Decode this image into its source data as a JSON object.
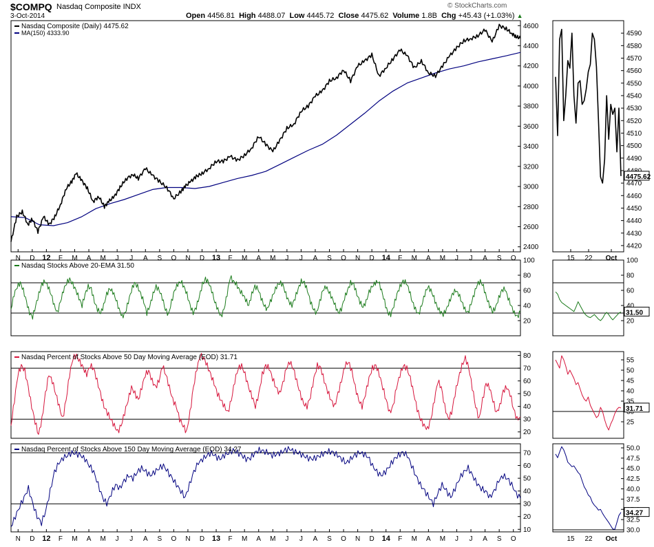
{
  "header": {
    "symbol": "$COMPQ",
    "index_name": "Nasdaq Composite INDX",
    "date": "3-Oct-2014",
    "open_label": "Open",
    "open": "4456.81",
    "high_label": "High",
    "high": "4488.07",
    "low_label": "Low",
    "low": "4445.72",
    "close_label": "Close",
    "close": "4475.62",
    "volume_label": "Volume",
    "volume": "1.8B",
    "chg_label": "Chg",
    "chg": "+45.43 (+1.03%)",
    "watermark": "© StockCharts.com"
  },
  "colors": {
    "price": "#000000",
    "ma": "#00007f",
    "ema20": "#1a7a1a",
    "pct50": "#d6133a",
    "pct150": "#00007f",
    "grid": "#000000"
  },
  "chart_data": [
    {
      "type": "line",
      "title": "Nasdaq Composite (Daily) 4475.62",
      "legend": [
        "Nasdaq Composite (Daily) 4475.62",
        "MA(150) 4333.90"
      ],
      "ylim": [
        2350,
        4650
      ],
      "yticks": [
        2400,
        2600,
        2800,
        3000,
        3200,
        3400,
        3600,
        3800,
        4000,
        4200,
        4400,
        4600
      ],
      "xticks": [
        "N",
        "D",
        "12",
        "F",
        "M",
        "A",
        "M",
        "J",
        "J",
        "A",
        "S",
        "O",
        "N",
        "D",
        "13",
        "F",
        "M",
        "A",
        "M",
        "J",
        "J",
        "A",
        "S",
        "O",
        "N",
        "D",
        "14",
        "F",
        "M",
        "A",
        "M",
        "J",
        "J",
        "A",
        "S",
        "O"
      ],
      "xlim_months": [
        0,
        36
      ],
      "series": [
        {
          "name": "Nasdaq Composite",
          "t": [
            0,
            0.4,
            0.8,
            1.2,
            1.5,
            1.9,
            2.3,
            2.7,
            3.1,
            3.5,
            3.9,
            4.3,
            4.6,
            5.0,
            5.4,
            5.8,
            6.2,
            6.6,
            6.9,
            7.3,
            7.7,
            8.1,
            8.6,
            9.0,
            9.5,
            10.0,
            10.5,
            11.0,
            11.5,
            12.0,
            12.3,
            12.7,
            13.1,
            13.5,
            14.0,
            14.5,
            15.0,
            15.5,
            16.0,
            16.5,
            17.0,
            17.5,
            18.0,
            18.5,
            19.0,
            19.5,
            20.0,
            20.5,
            21.0,
            21.5,
            22.0,
            22.5,
            23.0,
            23.5,
            24.0,
            24.5,
            25.0,
            25.5,
            26.0,
            26.5,
            27.0,
            27.5,
            28.0,
            28.5,
            29.0,
            29.5,
            30.0,
            30.5,
            31.0,
            31.5,
            32.0,
            32.5,
            33.0,
            33.5,
            34.0,
            34.5,
            35.0,
            35.4,
            35.7,
            36.0
          ],
          "values": [
            2450,
            2700,
            2750,
            2620,
            2680,
            2550,
            2700,
            2620,
            2700,
            2820,
            2980,
            3050,
            3130,
            3060,
            2980,
            2850,
            2900,
            2800,
            2850,
            2900,
            2990,
            3070,
            3120,
            3080,
            3180,
            3110,
            3050,
            2990,
            2880,
            2950,
            3000,
            3050,
            3100,
            3130,
            3180,
            3250,
            3250,
            3300,
            3260,
            3310,
            3380,
            3500,
            3420,
            3350,
            3460,
            3580,
            3620,
            3750,
            3800,
            3900,
            3950,
            4050,
            4080,
            4160,
            4050,
            4200,
            4250,
            4310,
            4100,
            4180,
            4270,
            4360,
            4300,
            4180,
            4250,
            4130,
            4100,
            4200,
            4300,
            4380,
            4450,
            4470,
            4500,
            4560,
            4440,
            4600,
            4570,
            4520,
            4490,
            4475.62
          ]
        },
        {
          "name": "MA(150)",
          "t": [
            0,
            1,
            2,
            3,
            4,
            5,
            6,
            7,
            8,
            9,
            10,
            11,
            12,
            13,
            14,
            15,
            16,
            17,
            18,
            19,
            20,
            21,
            22,
            23,
            24,
            25,
            26,
            27,
            28,
            29,
            30,
            31,
            32,
            33,
            34,
            35,
            36
          ],
          "values": [
            2700,
            2690,
            2620,
            2610,
            2640,
            2700,
            2780,
            2830,
            2870,
            2920,
            2970,
            2990,
            2990,
            2980,
            3000,
            3040,
            3080,
            3110,
            3150,
            3220,
            3290,
            3360,
            3420,
            3510,
            3620,
            3730,
            3850,
            3950,
            4030,
            4080,
            4130,
            4170,
            4200,
            4240,
            4270,
            4300,
            4333.9
          ]
        }
      ],
      "zoom": {
        "ylim": [
          4415,
          4600
        ],
        "yticks": [
          4420,
          4430,
          4440,
          4450,
          4460,
          4470,
          4480,
          4490,
          4500,
          4510,
          4520,
          4530,
          4540,
          4550,
          4560,
          4570,
          4580,
          4590
        ],
        "xticks": [
          "15",
          "22",
          "Oct"
        ],
        "values": [
          4555,
          4508,
          4585,
          4593,
          4520,
          4540,
          4568,
          4562,
          4590,
          4540,
          4518,
          4550,
          4552,
          4533,
          4536,
          4545,
          4559,
          4565,
          4590,
          4585,
          4563,
          4521,
          4475,
          4470,
          4489,
          4540,
          4505,
          4533,
          4525,
          4530,
          4495,
          4530,
          4475.62
        ],
        "last_label": "4475.62"
      }
    },
    {
      "type": "line",
      "title": "Nasdaq Stocks Above 20-EMA 31.50",
      "ylim": [
        0,
        100
      ],
      "yticks": [
        20,
        40,
        60,
        80,
        100
      ],
      "hlines": [
        30,
        70
      ],
      "series": [
        {
          "name": "Nasdaq Stocks Above 20-EMA",
          "values": [
            35,
            55,
            65,
            70,
            60,
            45,
            30,
            25,
            40,
            55,
            68,
            72,
            65,
            55,
            40,
            30,
            45,
            60,
            70,
            75,
            68,
            60,
            50,
            40,
            55,
            65,
            62,
            45,
            35,
            30,
            40,
            55,
            62,
            58,
            48,
            35,
            25,
            30,
            45,
            60,
            70,
            65,
            55,
            45,
            30,
            40,
            55,
            65,
            60,
            50,
            35,
            28,
            45,
            60,
            68,
            72,
            65,
            55,
            40,
            30,
            38,
            52,
            68,
            75,
            70,
            60,
            45,
            35,
            25,
            35,
            55,
            78,
            72,
            68,
            60,
            55,
            48,
            40,
            55,
            65,
            62,
            50,
            40,
            35,
            45,
            55,
            65,
            70,
            68,
            55,
            45,
            40,
            50,
            62,
            72,
            70,
            60,
            45,
            35,
            30,
            45,
            60,
            65,
            58,
            50,
            40,
            30,
            35,
            50,
            60,
            70,
            68,
            55,
            45,
            38,
            45,
            58,
            65,
            70,
            72,
            60,
            45,
            30,
            28,
            40,
            55,
            65,
            72,
            70,
            60,
            45,
            35,
            28,
            40,
            55,
            65,
            60,
            50,
            38,
            32,
            28,
            35,
            45,
            55,
            60,
            55,
            45,
            35,
            30,
            42,
            55,
            68,
            72,
            65,
            50,
            40,
            32,
            38,
            50,
            60,
            62,
            50,
            40,
            30,
            25,
            31.5
          ]
        }
      ],
      "zoom": {
        "ylim": [
          0,
          100
        ],
        "yticks": [
          20,
          40,
          60,
          80,
          100
        ],
        "hlines": [
          30,
          70
        ],
        "values": [
          58,
          55,
          48,
          44,
          42,
          40,
          38,
          36,
          34,
          32,
          38,
          45,
          40,
          35,
          30,
          27,
          25,
          24,
          26,
          28,
          25,
          22,
          20,
          23,
          28,
          31,
          28,
          24,
          21,
          24,
          27,
          30,
          31.5
        ],
        "last_label": "31.50"
      }
    },
    {
      "type": "line",
      "title": "Nasdaq Percent of Stocks Above 50 Day Moving Average (EOD) 31.71",
      "ylim": [
        15,
        83
      ],
      "yticks": [
        20,
        30,
        40,
        50,
        60,
        70,
        80
      ],
      "hlines": [
        30,
        70
      ],
      "series": [
        {
          "name": "Nasdaq % Above 50 DMA",
          "values": [
            25,
            45,
            65,
            72,
            68,
            55,
            40,
            28,
            18,
            30,
            50,
            65,
            60,
            50,
            40,
            30,
            45,
            65,
            78,
            80,
            75,
            70,
            65,
            72,
            70,
            60,
            50,
            40,
            35,
            30,
            25,
            20,
            25,
            35,
            45,
            55,
            50,
            45,
            55,
            65,
            68,
            60,
            55,
            60,
            72,
            65,
            55,
            45,
            40,
            30,
            25,
            20,
            35,
            55,
            70,
            80,
            78,
            72,
            65,
            58,
            50,
            45,
            40,
            35,
            45,
            60,
            70,
            72,
            65,
            55,
            48,
            40,
            50,
            65,
            72,
            70,
            62,
            55,
            50,
            58,
            70,
            75,
            70,
            60,
            50,
            42,
            40,
            48,
            62,
            72,
            70,
            60,
            52,
            45,
            40,
            50,
            60,
            72,
            75,
            68,
            55,
            45,
            40,
            50,
            62,
            70,
            72,
            65,
            55,
            45,
            35,
            40,
            55,
            65,
            72,
            70,
            62,
            50,
            38,
            30,
            25,
            22,
            30,
            45,
            60,
            55,
            40,
            30,
            35,
            50,
            62,
            72,
            78,
            70,
            55,
            40,
            30,
            45,
            58,
            55,
            45,
            35,
            40,
            52,
            55,
            50,
            38,
            30,
            31.71
          ]
        }
      ],
      "zoom": {
        "ylim": [
          17,
          59
        ],
        "yticks": [
          25,
          30,
          35,
          40,
          45,
          50,
          55
        ],
        "hlines": [
          30
        ],
        "values": [
          55,
          53,
          51,
          57,
          55,
          52,
          48,
          50,
          48,
          46,
          43,
          44,
          41,
          38,
          36,
          35,
          37,
          33,
          31,
          29,
          27,
          28,
          32,
          30,
          26,
          23,
          21,
          24,
          26,
          29,
          31,
          32,
          31.71
        ],
        "last_label": "31.71"
      }
    },
    {
      "type": "line",
      "title": "Nasdaq Percent of Stocks Above 150 Day Moving Average (EOD) 34.27",
      "ylim": [
        8,
        77
      ],
      "yticks": [
        10,
        20,
        30,
        40,
        50,
        60,
        70
      ],
      "hlines": [
        30,
        70
      ],
      "series": [
        {
          "name": "Nasdaq % Above 150 DMA",
          "values": [
            12,
            20,
            28,
            35,
            42,
            30,
            20,
            15,
            25,
            40,
            55,
            62,
            66,
            68,
            70,
            69,
            68,
            65,
            60,
            55,
            45,
            35,
            30,
            38,
            45,
            42,
            48,
            52,
            50,
            55,
            58,
            55,
            52,
            55,
            58,
            60,
            55,
            50,
            45,
            40,
            35,
            45,
            55,
            62,
            65,
            68,
            70,
            67,
            65,
            68,
            70,
            72,
            70,
            68,
            65,
            66,
            70,
            72,
            71,
            70,
            68,
            69,
            70,
            72,
            73,
            71,
            70,
            68,
            66,
            65,
            66,
            68,
            70,
            71,
            70,
            68,
            65,
            62,
            65,
            68,
            70,
            69,
            67,
            60,
            55,
            52,
            55,
            60,
            65,
            68,
            70,
            68,
            60,
            52,
            45,
            40,
            35,
            30,
            38,
            45,
            40,
            35,
            42,
            50,
            55,
            58,
            52,
            46,
            42,
            40,
            35,
            40,
            48,
            52,
            50,
            45,
            38,
            34.27
          ]
        }
      ],
      "zoom": {
        "ylim": [
          29.5,
          51
        ],
        "yticks": [
          30.0,
          32.5,
          35.0,
          37.5,
          40.0,
          42.5,
          45.0,
          47.5,
          50.0
        ],
        "hlines": [
          30.0
        ],
        "values": [
          48.5,
          47.6,
          49.0,
          50.3,
          49.5,
          48.2,
          46.5,
          46.0,
          45.4,
          45.6,
          44.8,
          44.0,
          43.5,
          42.0,
          40.5,
          39.7,
          38.5,
          38.0,
          36.7,
          36.0,
          35.5,
          34.8,
          35.0,
          34.0,
          33.2,
          32.5,
          31.8,
          31.0,
          30.2,
          30.1,
          31.8,
          33.5,
          34.27
        ],
        "last_label": "34.27"
      }
    }
  ]
}
